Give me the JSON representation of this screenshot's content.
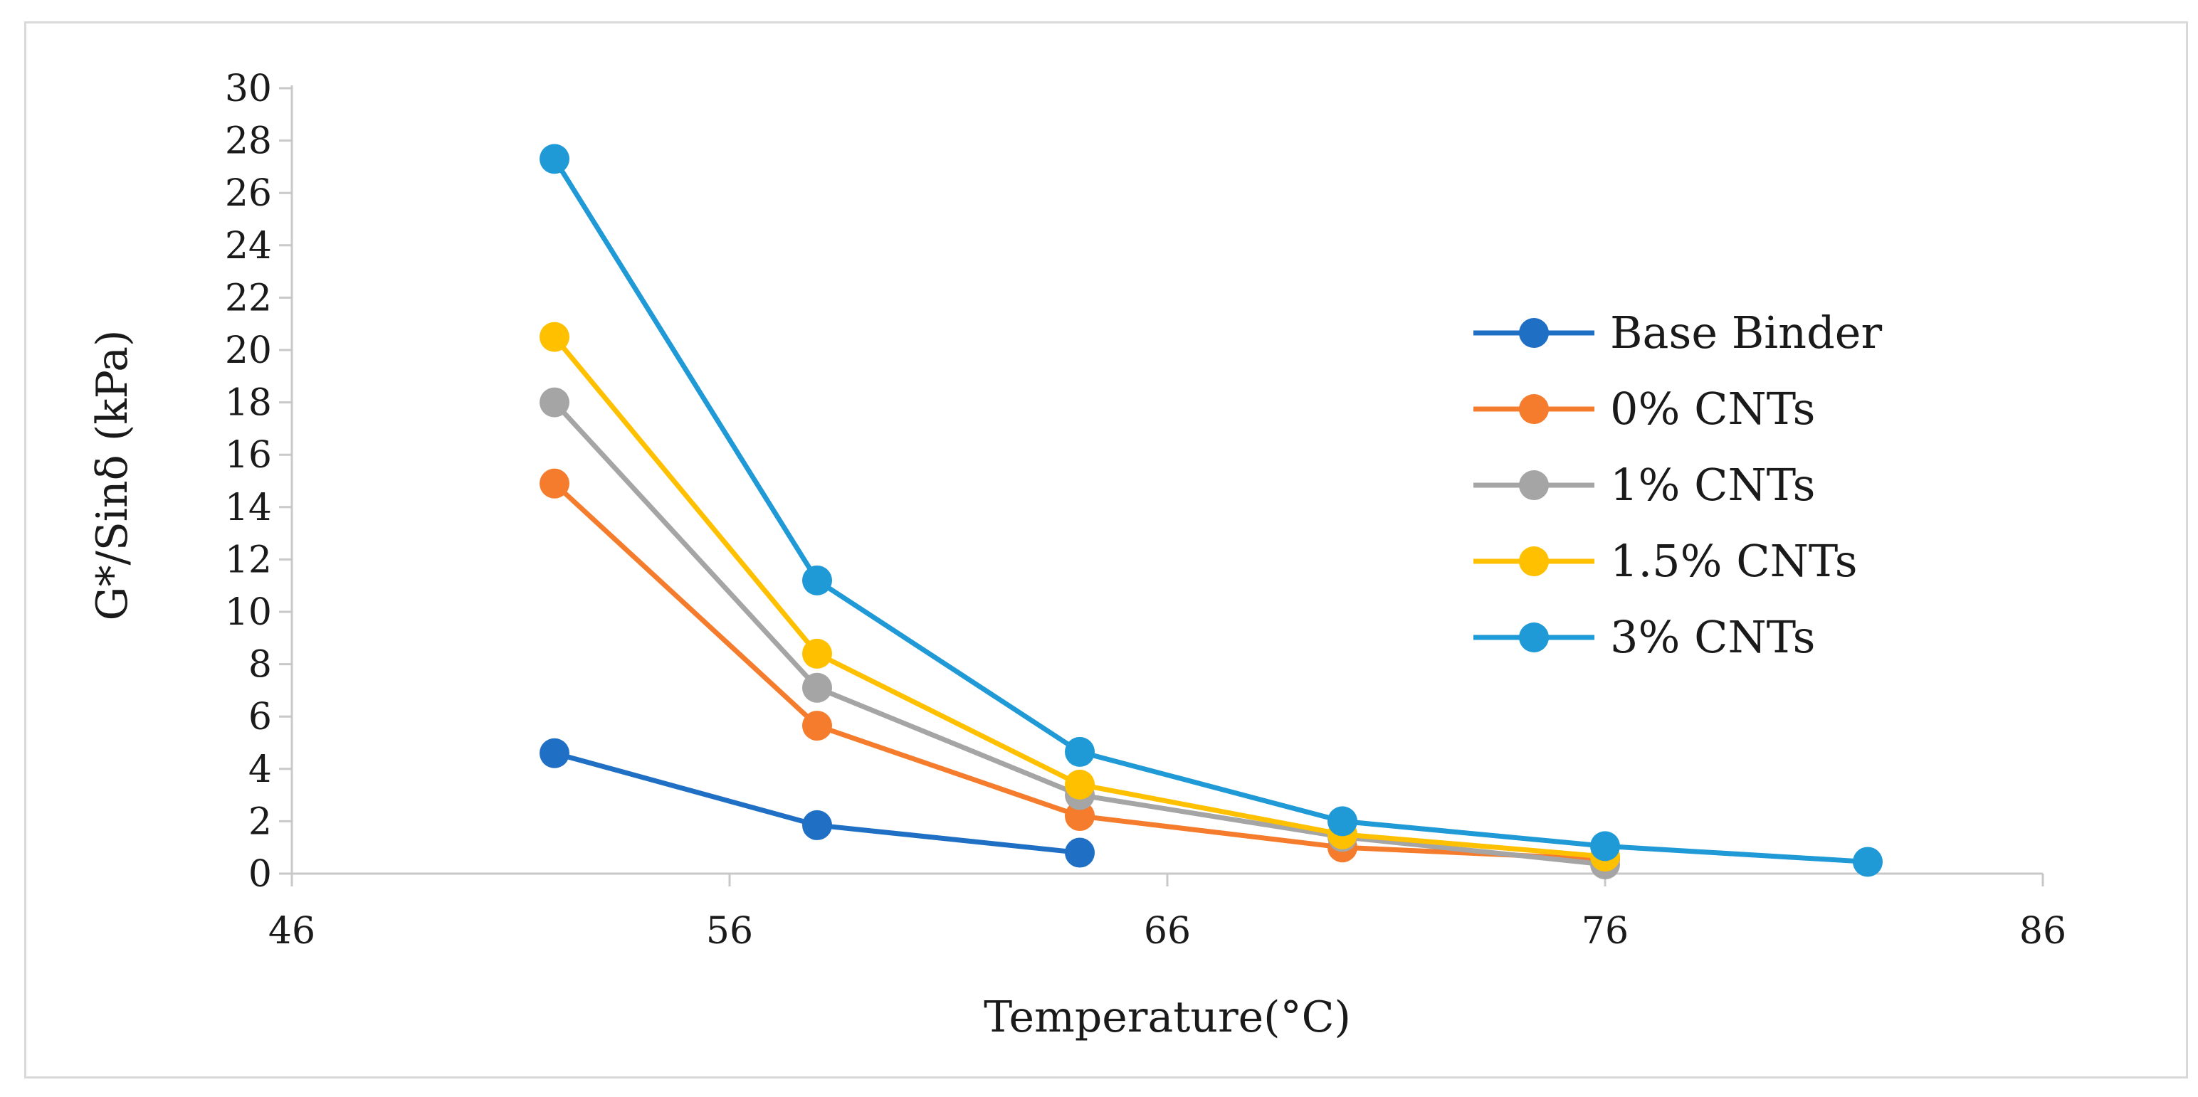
{
  "chart_data": {
    "type": "line",
    "title": "",
    "xlabel": "Temperature(°C)",
    "ylabel": "G*/Sinδ (kPa)",
    "xlim": [
      46,
      86
    ],
    "ylim": [
      0,
      30
    ],
    "xticks": [
      46,
      56,
      66,
      76,
      86
    ],
    "yticks": [
      0,
      2,
      4,
      6,
      8,
      10,
      12,
      14,
      16,
      18,
      20,
      22,
      24,
      26,
      28,
      30
    ],
    "grid": false,
    "legend_position": "right",
    "series": [
      {
        "name": "Base Binder",
        "color": "#1f6fc5",
        "x": [
          52,
          58,
          64
        ],
        "y": [
          4.6,
          1.85,
          0.8
        ]
      },
      {
        "name": "0% CNTs",
        "color": "#f47c2c",
        "x": [
          52,
          58,
          64,
          70,
          76
        ],
        "y": [
          14.9,
          5.65,
          2.2,
          1.0,
          0.55
        ]
      },
      {
        "name": "1% CNTs",
        "color": "#a5a5a5",
        "x": [
          52,
          58,
          64,
          70,
          76
        ],
        "y": [
          18.0,
          7.1,
          3.0,
          1.4,
          0.35
        ]
      },
      {
        "name": "1.5% CNTs",
        "color": "#ffc000",
        "x": [
          52,
          58,
          64,
          70,
          76
        ],
        "y": [
          20.5,
          8.4,
          3.4,
          1.5,
          0.65
        ]
      },
      {
        "name": "3% CNTs",
        "color": "#1f9ad6",
        "x": [
          52,
          58,
          64,
          70,
          76,
          82
        ],
        "y": [
          27.3,
          11.2,
          4.65,
          2.0,
          1.05,
          0.45
        ]
      }
    ]
  }
}
